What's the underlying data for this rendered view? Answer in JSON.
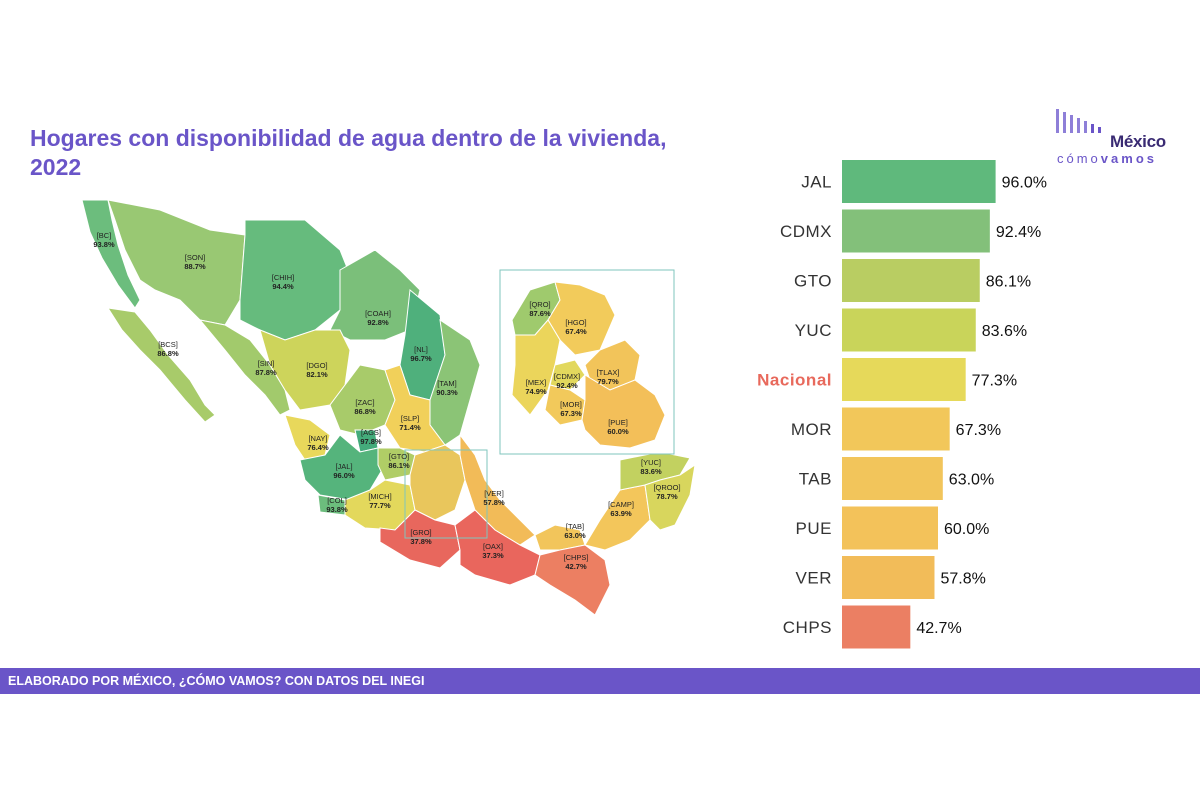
{
  "header": {
    "title_line1": "Hogares con disponibilidad de agua dentro de la vivienda,",
    "title_line2": "2022"
  },
  "logo": {
    "word": "México",
    "sub_light": "cómo",
    "sub_bold": "vamos"
  },
  "footer": {
    "text": "ELABORADO POR MÉXICO, ¿CÓMO VAMOS? CON DATOS DEL INEGI"
  },
  "colors": {
    "title": "#6a55c8",
    "footer_bg": "#6a55c8",
    "nacional_label": "#e8695c"
  },
  "chart_data": [
    {
      "type": "bar",
      "orientation": "horizontal",
      "categories": [
        "JAL",
        "CDMX",
        "GTO",
        "YUC",
        "Nacional",
        "MOR",
        "TAB",
        "PUE",
        "VER",
        "CHPS"
      ],
      "values": [
        96.0,
        92.4,
        86.1,
        83.6,
        77.3,
        67.3,
        63.0,
        60.0,
        57.8,
        42.7
      ],
      "value_labels": [
        "96.0%",
        "92.4%",
        "86.1%",
        "83.6%",
        "77.3%",
        "67.3%",
        "63.0%",
        "60.0%",
        "57.8%",
        "42.7%"
      ],
      "colors": [
        "#5fb97c",
        "#83c07a",
        "#b9cd62",
        "#c9d45a",
        "#e6d95a",
        "#f2c75a",
        "#f2c55b",
        "#f3c25a",
        "#f2bc59",
        "#eb7f63"
      ],
      "highlight": "Nacional",
      "title": "",
      "xlabel": "",
      "ylabel": ""
    },
    {
      "type": "choropleth",
      "states": [
        {
          "code": "BC",
          "value": "93.8%",
          "color": "#6cbd7d"
        },
        {
          "code": "SON",
          "value": "88.7%",
          "color": "#99c873"
        },
        {
          "code": "CHIH",
          "value": "94.4%",
          "color": "#66bb7d"
        },
        {
          "code": "COAH",
          "value": "92.8%",
          "color": "#7bbf7a"
        },
        {
          "code": "NL",
          "value": "96.7%",
          "color": "#4fb07c"
        },
        {
          "code": "TAM",
          "value": "90.3%",
          "color": "#8bc476"
        },
        {
          "code": "BCS",
          "value": "86.8%",
          "color": "#a8cb6a"
        },
        {
          "code": "SIN",
          "value": "87.8%",
          "color": "#a2ca6c"
        },
        {
          "code": "DGO",
          "value": "82.1%",
          "color": "#cdd45b"
        },
        {
          "code": "ZAC",
          "value": "86.8%",
          "color": "#a8cb6a"
        },
        {
          "code": "SLP",
          "value": "71.4%",
          "color": "#f1d05a"
        },
        {
          "code": "NAY",
          "value": "76.4%",
          "color": "#e8d85b"
        },
        {
          "code": "AGS",
          "value": "97.8%",
          "color": "#44ab7b"
        },
        {
          "code": "JAL",
          "value": "96.0%",
          "color": "#55b47c"
        },
        {
          "code": "GTO",
          "value": "86.1%",
          "color": "#b0cd66"
        },
        {
          "code": "COL",
          "value": "93.8%",
          "color": "#6cbd7d"
        },
        {
          "code": "MICH",
          "value": "77.7%",
          "color": "#e3d85c"
        },
        {
          "code": "VER",
          "value": "57.8%",
          "color": "#f2bb58"
        },
        {
          "code": "GRO",
          "value": "37.8%",
          "color": "#e8675d"
        },
        {
          "code": "OAX",
          "value": "37.3%",
          "color": "#e9665d"
        },
        {
          "code": "CHPS",
          "value": "42.7%",
          "color": "#ec7f62"
        },
        {
          "code": "TAB",
          "value": "63.0%",
          "color": "#f2c55b"
        },
        {
          "code": "CAMP",
          "value": "63.9%",
          "color": "#f3c65b"
        },
        {
          "code": "YUC",
          "value": "83.6%",
          "color": "#c2d160"
        },
        {
          "code": "QROO",
          "value": "78.7%",
          "color": "#d8d65d"
        }
      ],
      "inset_states": [
        {
          "code": "QRO",
          "value": "87.6%",
          "color": "#9fca6d"
        },
        {
          "code": "HGO",
          "value": "67.4%",
          "color": "#f2cb5b"
        },
        {
          "code": "MEX",
          "value": "74.9%",
          "color": "#ebd55b"
        },
        {
          "code": "CDMX",
          "value": "92.4%",
          "color": "#e2d85d"
        },
        {
          "code": "TLAX",
          "value": "79.7%",
          "color": "#f2c45a"
        },
        {
          "code": "MOR",
          "value": "67.3%",
          "color": "#f2c95b"
        },
        {
          "code": "PUE",
          "value": "60.0%",
          "color": "#f3bf59"
        }
      ]
    }
  ]
}
